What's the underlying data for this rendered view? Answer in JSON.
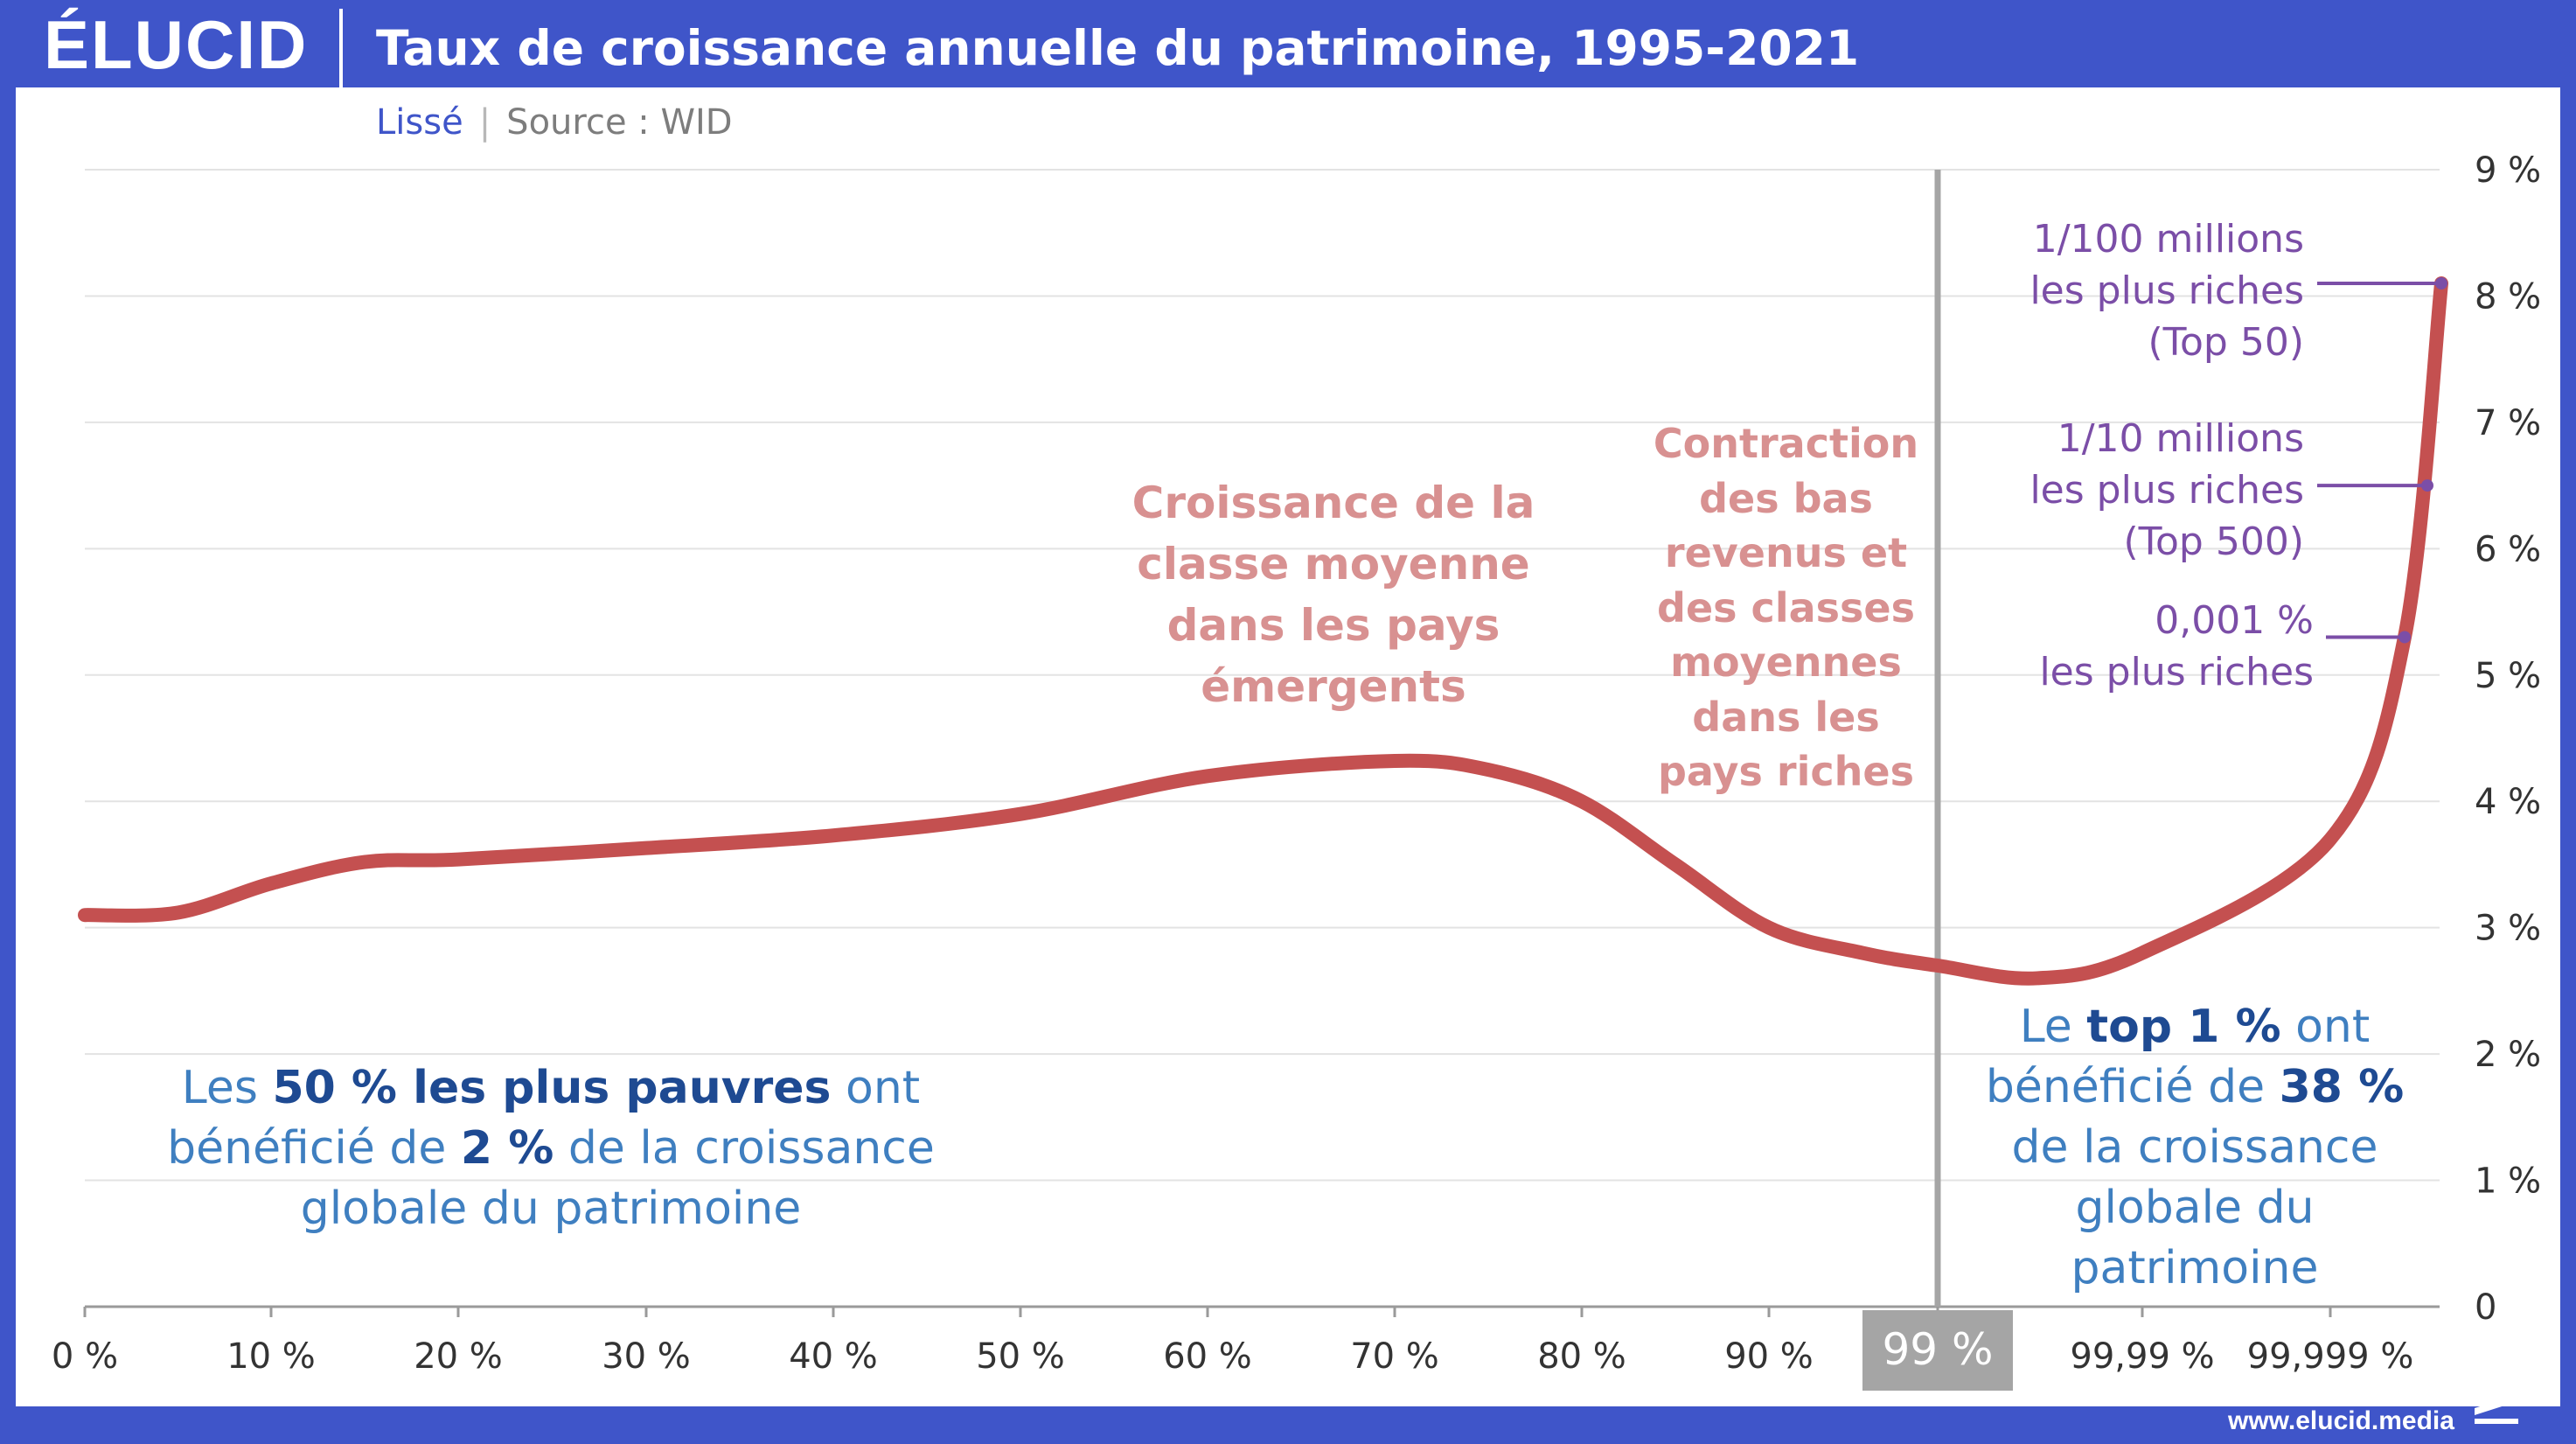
{
  "header": {
    "logo_text": "ÉLUCID",
    "title": "Taux de croissance annuelle du patrimoine, 1995-2021"
  },
  "subtitle": {
    "smoothing": "Lissé",
    "separator": "|",
    "source": "Source : WID"
  },
  "footer": {
    "url": "www.elucid.media"
  },
  "colors": {
    "frame": "#3f55c9",
    "line": "#c45050",
    "annotation_pink": "#d89191",
    "annotation_blue": "#3f7fc0",
    "annotation_blue_bold": "#1e4a92",
    "callout_purple": "#7b4ea7",
    "divider_gray": "#a5a5a5"
  },
  "annotations": {
    "emerging": {
      "lines": [
        "Croissance de la",
        "classe moyenne",
        "dans les pays",
        "émergents"
      ]
    },
    "contraction": {
      "lines": [
        "Contraction",
        "des bas",
        "revenus et",
        "des classes",
        "moyennes",
        "dans les",
        "pays riches"
      ]
    },
    "poorest": {
      "l1a": "Les ",
      "l1b": "50 % les plus pauvres",
      "l1c": " ont",
      "l2a": "bénéficié de ",
      "l2b": "2 %",
      "l2c": " de la croissance",
      "l3": "globale du patrimoine"
    },
    "top1": {
      "l1a": "Le ",
      "l1b": "top 1 %",
      "l1c": " ont",
      "l2a": "bénéficié de ",
      "l2b": "38 %",
      "l3": "de la croissance",
      "l4": "globale du",
      "l5": "patrimoine"
    },
    "callouts": [
      {
        "lines": [
          "1/100 millions",
          "les plus riches",
          "(Top 50)"
        ],
        "value": 8.1
      },
      {
        "lines": [
          "1/10 millions",
          "les plus riches",
          "(Top 500)"
        ],
        "value": 6.5
      },
      {
        "lines": [
          "0,001 %",
          "les plus riches"
        ],
        "value": 5.3
      }
    ]
  },
  "chart_data": {
    "type": "line",
    "title": "Taux de croissance annuelle du patrimoine, 1995-2021",
    "subtitle": "Lissé",
    "source": "Source : WID",
    "xlabel": "",
    "ylabel": "",
    "x_tick_labels": [
      "0 %",
      "10 %",
      "20 %",
      "30 %",
      "40 %",
      "50 %",
      "60 %",
      "70 %",
      "80 %",
      "90 %",
      "99 %",
      "99,99 %",
      "99,999 %"
    ],
    "x_highlight_label": "99 %",
    "y_tick_labels": [
      "0",
      "1 %",
      "2 %",
      "3 %",
      "4 %",
      "5 %",
      "6 %",
      "7 %",
      "8 %",
      "9 %"
    ],
    "ylim": [
      0,
      9
    ],
    "grid": true,
    "y_axis_side": "right",
    "series": [
      {
        "values": [
          {
            "x": "0 %",
            "y": 3.1
          },
          {
            "x": "5 %",
            "y": 3.12
          },
          {
            "x": "10 %",
            "y": 3.35
          },
          {
            "x": "15 %",
            "y": 3.52
          },
          {
            "x": "20 %",
            "y": 3.54
          },
          {
            "x": "30 %",
            "y": 3.63
          },
          {
            "x": "40 %",
            "y": 3.73
          },
          {
            "x": "50 %",
            "y": 3.9
          },
          {
            "x": "60 %",
            "y": 4.2
          },
          {
            "x": "70 %",
            "y": 4.32
          },
          {
            "x": "75 %",
            "y": 4.25
          },
          {
            "x": "80 %",
            "y": 4.0
          },
          {
            "x": "85 %",
            "y": 3.5
          },
          {
            "x": "90 %",
            "y": 3.0
          },
          {
            "x": "95 %",
            "y": 2.8
          },
          {
            "x": "99 %",
            "y": 2.7
          },
          {
            "x": "99,9 %",
            "y": 2.6
          },
          {
            "x": "99,99 %",
            "y": 2.8
          },
          {
            "x": "99,999 %",
            "y": 3.7
          },
          {
            "x": "99,9999 %",
            "y": 5.3
          },
          {
            "x": "99,99999 %",
            "y": 8.1
          }
        ]
      }
    ],
    "vertical_marker": {
      "x": "99 %"
    }
  }
}
